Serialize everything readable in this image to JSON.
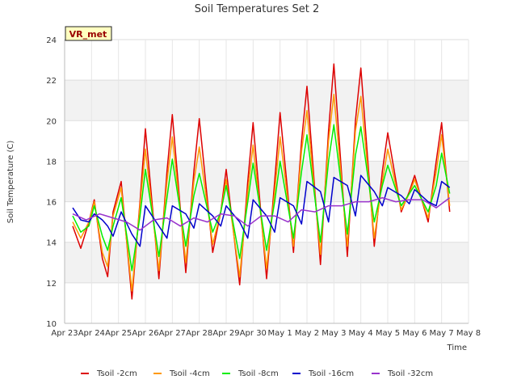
{
  "chart_data": {
    "type": "line",
    "title": "Soil Temperatures Set 2",
    "xlabel": "Time",
    "ylabel": "Soil Temperature (C)",
    "ylim": [
      10,
      24
    ],
    "yticks": [
      10,
      12,
      14,
      16,
      18,
      20,
      22,
      24
    ],
    "xlim": [
      0,
      15
    ],
    "xticks": [
      "Apr 23",
      "Apr 24",
      "Apr 25",
      "Apr 26",
      "Apr 27",
      "Apr 28",
      "Apr 29",
      "Apr 30",
      "May 1",
      "May 2",
      "May 3",
      "May 4",
      "May 5",
      "May 6",
      "May 7",
      "May 8"
    ],
    "grid": true,
    "legend_position": "bottom",
    "annotation": "VR_met",
    "series": [
      {
        "name": "Tsoil -2cm",
        "color": "#dd0000",
        "x": [
          0.3,
          0.6,
          0.9,
          1.1,
          1.4,
          1.6,
          1.8,
          2.1,
          2.5,
          2.8,
          3.0,
          3.5,
          3.8,
          4.0,
          4.5,
          4.8,
          5.0,
          5.5,
          5.8,
          6.0,
          6.5,
          6.8,
          7.0,
          7.5,
          7.8,
          8.0,
          8.5,
          8.8,
          9.0,
          9.5,
          9.8,
          10.0,
          10.5,
          10.8,
          11.0,
          11.5,
          11.8,
          12.0,
          12.5,
          12.8,
          13.0,
          13.5,
          13.8,
          14.0,
          14.3
        ],
        "y": [
          14.8,
          13.7,
          15.0,
          16.1,
          13.2,
          12.3,
          15.5,
          17.0,
          11.2,
          16.0,
          19.6,
          12.2,
          17.5,
          20.3,
          12.5,
          17.5,
          20.1,
          13.5,
          15.5,
          17.6,
          11.9,
          17.0,
          19.9,
          12.2,
          17.0,
          20.4,
          13.5,
          19.0,
          21.7,
          12.9,
          19.5,
          22.8,
          13.3,
          20.0,
          22.6,
          13.8,
          17.5,
          19.4,
          15.5,
          16.5,
          17.3,
          15.0,
          18.0,
          19.9,
          15.5
        ]
      },
      {
        "name": "Tsoil -4cm",
        "color": "#ff9900",
        "x": [
          0.3,
          0.6,
          0.9,
          1.1,
          1.4,
          1.6,
          1.8,
          2.1,
          2.5,
          2.8,
          3.0,
          3.5,
          3.8,
          4.0,
          4.5,
          4.8,
          5.0,
          5.5,
          5.8,
          6.0,
          6.5,
          6.8,
          7.0,
          7.5,
          7.8,
          8.0,
          8.5,
          8.8,
          9.0,
          9.5,
          9.8,
          10.0,
          10.5,
          10.8,
          11.0,
          11.5,
          11.8,
          12.0,
          12.5,
          12.8,
          13.0,
          13.5,
          13.8,
          14.0,
          14.3
        ],
        "y": [
          15.0,
          14.2,
          15.0,
          16.0,
          13.5,
          12.8,
          15.3,
          16.7,
          11.6,
          15.8,
          18.6,
          12.6,
          17.0,
          19.2,
          13.0,
          17.0,
          18.7,
          13.9,
          15.5,
          17.1,
          12.3,
          16.5,
          18.8,
          12.7,
          16.5,
          19.2,
          13.8,
          18.5,
          20.5,
          13.4,
          19.0,
          21.3,
          13.8,
          19.5,
          21.2,
          14.2,
          17.0,
          18.6,
          15.6,
          16.4,
          17.1,
          15.2,
          17.5,
          19.3,
          15.8
        ]
      },
      {
        "name": "Tsoil -8cm",
        "color": "#00ee00",
        "x": [
          0.3,
          0.6,
          0.9,
          1.1,
          1.4,
          1.6,
          1.8,
          2.1,
          2.5,
          2.8,
          3.0,
          3.5,
          3.8,
          4.0,
          4.5,
          4.8,
          5.0,
          5.5,
          5.8,
          6.0,
          6.5,
          6.8,
          7.0,
          7.5,
          7.8,
          8.0,
          8.5,
          8.8,
          9.0,
          9.5,
          9.8,
          10.0,
          10.5,
          10.8,
          11.0,
          11.5,
          11.8,
          12.0,
          12.5,
          12.8,
          13.0,
          13.5,
          13.8,
          14.0,
          14.3
        ],
        "y": [
          15.3,
          14.5,
          14.8,
          15.8,
          14.3,
          13.6,
          14.8,
          16.2,
          12.6,
          15.3,
          17.6,
          13.3,
          16.2,
          18.1,
          13.8,
          16.3,
          17.4,
          14.5,
          15.5,
          16.8,
          13.2,
          16.0,
          17.9,
          13.6,
          16.0,
          18.0,
          14.2,
          17.5,
          19.3,
          14.0,
          18.0,
          19.8,
          14.4,
          18.3,
          19.7,
          15.0,
          16.8,
          17.8,
          15.8,
          16.4,
          16.8,
          15.5,
          16.8,
          18.4,
          16.4
        ]
      },
      {
        "name": "Tsoil -16cm",
        "color": "#0000cc",
        "x": [
          0.3,
          0.6,
          0.9,
          1.1,
          1.4,
          1.6,
          1.8,
          2.1,
          2.5,
          2.8,
          3.0,
          3.5,
          3.8,
          4.0,
          4.5,
          4.8,
          5.0,
          5.5,
          5.8,
          6.0,
          6.5,
          6.8,
          7.0,
          7.5,
          7.8,
          8.0,
          8.5,
          8.8,
          9.0,
          9.5,
          9.8,
          10.0,
          10.5,
          10.8,
          11.0,
          11.5,
          11.8,
          12.0,
          12.5,
          12.8,
          13.0,
          13.5,
          13.8,
          14.0,
          14.3
        ],
        "y": [
          15.7,
          15.1,
          15.0,
          15.4,
          15.1,
          14.8,
          14.3,
          15.5,
          14.4,
          13.8,
          15.8,
          14.8,
          14.2,
          15.8,
          15.4,
          14.7,
          15.9,
          15.3,
          14.8,
          15.8,
          15.0,
          14.2,
          16.1,
          15.3,
          14.5,
          16.2,
          15.8,
          14.9,
          17.0,
          16.5,
          15.0,
          17.2,
          16.8,
          15.3,
          17.3,
          16.5,
          15.8,
          16.7,
          16.3,
          15.9,
          16.6,
          16.0,
          15.8,
          17.0,
          16.7
        ]
      },
      {
        "name": "Tsoil -32cm",
        "color": "#9933cc",
        "x": [
          0.3,
          0.8,
          1.3,
          1.8,
          2.3,
          2.8,
          3.3,
          3.8,
          4.3,
          4.8,
          5.3,
          5.8,
          6.3,
          6.8,
          7.3,
          7.8,
          8.3,
          8.8,
          9.3,
          9.8,
          10.3,
          10.8,
          11.3,
          11.8,
          12.3,
          12.8,
          13.3,
          13.8,
          14.3
        ],
        "y": [
          15.4,
          15.1,
          15.4,
          15.2,
          15.0,
          14.6,
          15.1,
          15.2,
          14.8,
          15.2,
          15.0,
          15.4,
          15.3,
          14.8,
          15.3,
          15.3,
          15.0,
          15.6,
          15.5,
          15.8,
          15.8,
          16.0,
          16.0,
          16.2,
          16.0,
          16.1,
          16.1,
          15.7,
          16.2
        ]
      }
    ]
  }
}
